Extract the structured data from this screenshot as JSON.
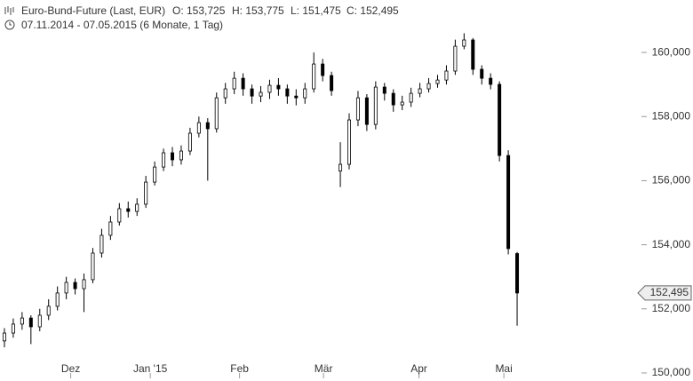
{
  "chart_data": {
    "type": "candlestick",
    "title": "Euro-Bund-Future (Last, EUR)",
    "header_stats": [
      "O: 153,725",
      "H: 153,775",
      "L: 151,475",
      "C: 152,495"
    ],
    "subtitle": "07.11.2014 - 07.05.2015 (6 Monate, 1 Tag)",
    "x": [
      0,
      1,
      2,
      3,
      4,
      5,
      6,
      7,
      8,
      9,
      10,
      11,
      12,
      13,
      14,
      15,
      16,
      17,
      18,
      19,
      20,
      21,
      22,
      23,
      24,
      25,
      26,
      27,
      28,
      29,
      30,
      31,
      32,
      33,
      34,
      35,
      36,
      37,
      38,
      39,
      40,
      41,
      42,
      43,
      44,
      45,
      46,
      47,
      48,
      49,
      50,
      51,
      52,
      53,
      54,
      55,
      56,
      57,
      58
    ],
    "open": [
      151000,
      151245,
      151525,
      151715,
      151440,
      151800,
      152080,
      152495,
      152825,
      152630,
      152910,
      153740,
      154295,
      154710,
      155125,
      155040,
      155265,
      155955,
      156425,
      156870,
      156650,
      156925,
      157480,
      157810,
      157620,
      158585,
      158865,
      159195,
      158865,
      158640,
      158755,
      158975,
      158865,
      158640,
      158585,
      158865,
      159640,
      159280,
      156300,
      156510,
      157895,
      158585,
      157755,
      158920,
      158725,
      158365,
      158450,
      158725,
      158865,
      159030,
      159140,
      159420,
      160195,
      160390,
      159475,
      159195,
      159005,
      156785,
      153725
    ],
    "high": [
      151400,
      151700,
      151900,
      151800,
      152000,
      152300,
      152700,
      153000,
      152950,
      153100,
      153900,
      154500,
      154900,
      155300,
      155350,
      155450,
      156150,
      156600,
      157000,
      157050,
      157100,
      157650,
      158000,
      157950,
      158750,
      159050,
      159400,
      159350,
      159000,
      158950,
      159150,
      159200,
      159000,
      158850,
      159050,
      160000,
      159800,
      159400,
      157200,
      158100,
      158800,
      158700,
      159100,
      159050,
      158850,
      158650,
      158900,
      159050,
      159200,
      159300,
      159600,
      160400,
      160600,
      160450,
      159600,
      159350,
      159100,
      156950,
      153775
    ],
    "low": [
      150800,
      151100,
      151350,
      150900,
      151300,
      151650,
      151950,
      152300,
      152450,
      151900,
      152800,
      153600,
      154150,
      154600,
      154850,
      154900,
      155150,
      155850,
      156300,
      156450,
      156500,
      156800,
      157350,
      156000,
      157500,
      158400,
      158700,
      158650,
      158400,
      158450,
      158550,
      158650,
      158400,
      158350,
      158400,
      158750,
      159100,
      158650,
      155800,
      156350,
      157700,
      157550,
      157600,
      158500,
      158150,
      158200,
      158300,
      158600,
      158750,
      158900,
      159000,
      159300,
      160100,
      159300,
      159000,
      158850,
      156600,
      153700,
      151475
    ],
    "close": [
      151245,
      151525,
      151715,
      151440,
      151800,
      152080,
      152495,
      152825,
      152630,
      152910,
      153740,
      154295,
      154710,
      155125,
      155040,
      155265,
      155955,
      156425,
      156870,
      156650,
      156925,
      157480,
      157810,
      157620,
      158585,
      158865,
      159195,
      158865,
      158640,
      158755,
      158975,
      158865,
      158640,
      158585,
      158865,
      159640,
      159280,
      158810,
      156510,
      157895,
      158585,
      157755,
      158920,
      158725,
      158365,
      158450,
      158725,
      158865,
      159030,
      159140,
      159420,
      160195,
      160390,
      159475,
      159195,
      159005,
      156785,
      153880,
      152495
    ],
    "last_value_label": "152,495",
    "up_color": "#ffffff",
    "down_color": "#000000",
    "edge_color": "#000000",
    "xlim": [
      -0.5,
      58.8
    ],
    "xticks": [
      {
        "value": 7.5,
        "label": "Dez"
      },
      {
        "value": 16.5,
        "label": "Jan '15"
      },
      {
        "value": 26.6,
        "label": "Feb"
      },
      {
        "value": 36.1,
        "label": "Mär"
      },
      {
        "value": 46.9,
        "label": "Apr"
      },
      {
        "value": 56.5,
        "label": "Mai"
      }
    ],
    "ylim": [
      149860,
      161360
    ],
    "yticks": [
      {
        "value": 150000,
        "label": "150,000"
      },
      {
        "value": 152000,
        "label": "152,000"
      },
      {
        "value": 154000,
        "label": "154,000"
      },
      {
        "value": 156000,
        "label": "156,000"
      },
      {
        "value": 158000,
        "label": "158,000"
      },
      {
        "value": 160000,
        "label": "160,000"
      }
    ]
  }
}
